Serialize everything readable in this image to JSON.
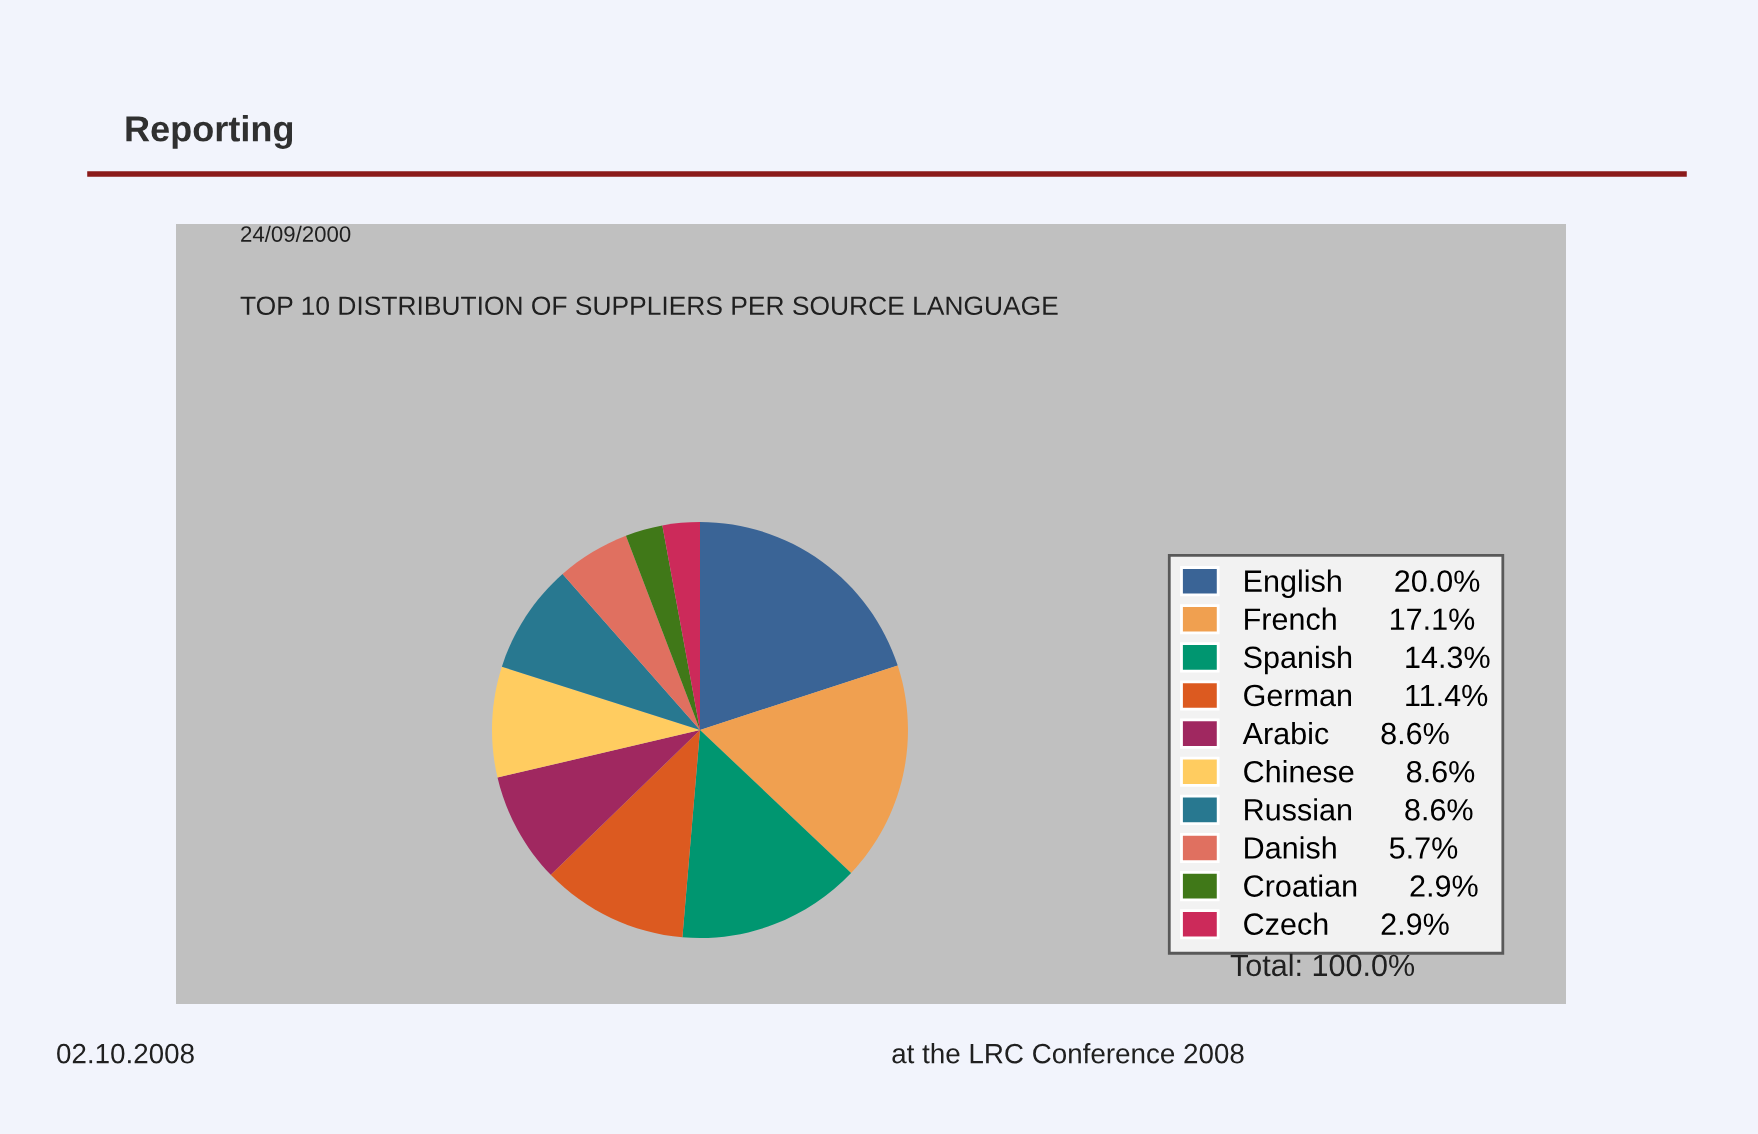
{
  "chart_data": {
    "type": "pie",
    "title": "Reporting",
    "subtitle": "TOP 10 DISTRIBUTION OF SUPPLIERS PER SOURCE LANGUAGE",
    "categories": [
      "English",
      "French",
      "Spanish",
      "German",
      "Arabic",
      "Chinese",
      "Russian",
      "Danish",
      "Croatian",
      "Czech"
    ],
    "values": [
      20.0,
      17.1,
      14.3,
      11.4,
      8.6,
      8.6,
      8.6,
      5.7,
      2.9,
      2.9
    ],
    "value_labels": [
      "20.0%",
      "17.1%",
      "14.3%",
      "11.4%",
      "8.6%",
      "8.6%",
      "8.6%",
      "5.7%",
      "2.9%",
      "2.9%"
    ],
    "colors": [
      "#3a6496",
      "#f0a050",
      "#009670",
      "#dc5a20",
      "#a02860",
      "#ffcc60",
      "#287890",
      "#e07060",
      "#407818",
      "#cc2a5a"
    ],
    "legend": "right",
    "annotations": [
      "24/09/2000",
      "Total: 100.0%",
      "02.10.2008",
      "at the LRC Conference 2008"
    ]
  }
}
